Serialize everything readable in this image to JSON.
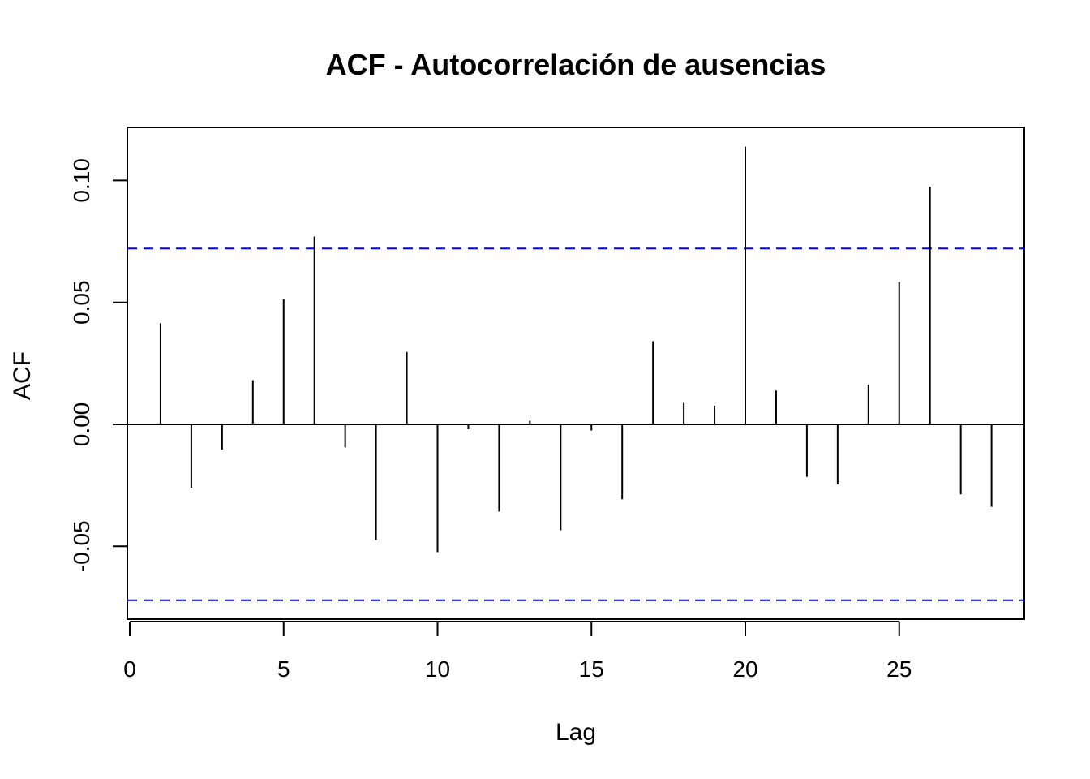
{
  "chart_data": {
    "type": "bar",
    "title": "ACF - Autocorrelación de ausencias",
    "xlabel": "Lag",
    "ylabel": "ACF",
    "xlim": [
      0,
      29
    ],
    "ylim": [
      -0.079,
      0.122
    ],
    "x_ticks": [
      0,
      5,
      10,
      15,
      20,
      25
    ],
    "x_tick_labels": [
      "0",
      "5",
      "10",
      "15",
      "20",
      "25"
    ],
    "y_ticks": [
      -0.05,
      0.0,
      0.05,
      0.1
    ],
    "y_tick_labels": [
      "-0.05",
      "0.00",
      "0.05",
      "0.10"
    ],
    "lags": [
      1,
      2,
      3,
      4,
      5,
      6,
      7,
      8,
      9,
      10,
      11,
      12,
      13,
      14,
      15,
      16,
      17,
      18,
      19,
      20,
      21,
      22,
      23,
      24,
      25,
      26,
      27,
      28
    ],
    "values": [
      0.0415,
      -0.026,
      -0.0103,
      0.0181,
      0.0513,
      0.077,
      -0.0095,
      -0.0474,
      0.0297,
      -0.0524,
      -0.002,
      -0.0357,
      0.0015,
      -0.0434,
      -0.0025,
      -0.0307,
      0.0341,
      0.0088,
      0.0077,
      0.1139,
      0.0139,
      -0.0215,
      -0.0246,
      0.0163,
      0.0584,
      0.0974,
      -0.0287,
      -0.0338
    ],
    "confidence_bound": 0.0721,
    "colors": {
      "bars": "#000000",
      "confidence": "#0000ff",
      "zero_line": "#000000"
    }
  }
}
